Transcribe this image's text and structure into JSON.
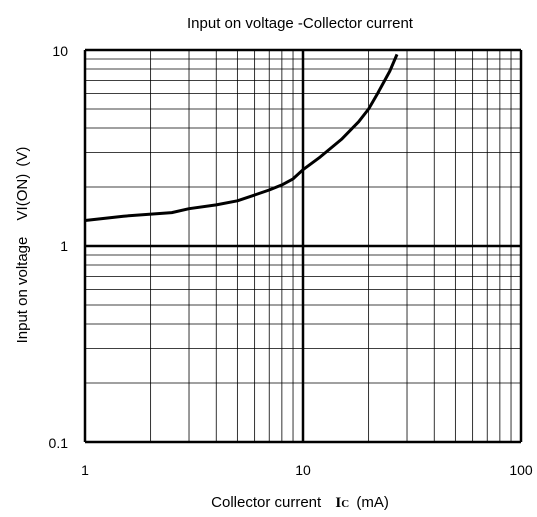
{
  "chart_data": {
    "type": "line",
    "title": "Input on voltage -Collector current",
    "xlabel": "Collector current",
    "xlabel_symbol": "I",
    "xlabel_subscript": "C",
    "xlabel_unit": "(mA)",
    "ylabel": "Input on voltage",
    "ylabel_symbol": "VI(ON)",
    "ylabel_unit": "(V)",
    "x_scale": "log",
    "y_scale": "log",
    "xlim": [
      1,
      100
    ],
    "ylim": [
      0.1,
      10
    ],
    "x_ticks": [
      "1",
      "10",
      "100"
    ],
    "y_ticks": [
      "10",
      "1",
      "0.1"
    ],
    "grid": true,
    "series": [
      {
        "x": [
          1,
          1.5,
          2.5,
          3,
          4,
          5,
          6,
          7,
          8,
          9,
          10,
          12,
          15,
          18,
          20,
          22,
          25,
          27
        ],
        "y": [
          1.35,
          1.42,
          1.48,
          1.55,
          1.62,
          1.7,
          1.82,
          1.93,
          2.05,
          2.2,
          2.45,
          2.85,
          3.5,
          4.3,
          5.0,
          6.0,
          7.8,
          9.5
        ]
      }
    ]
  }
}
